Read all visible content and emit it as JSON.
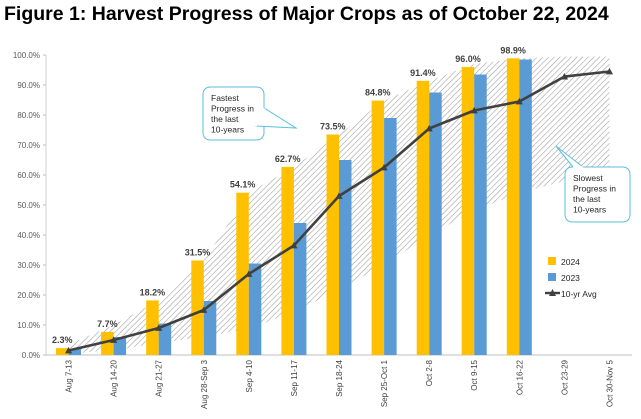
{
  "title": "Figure 1: Harvest Progress of Major Crops as of October 22, 2024",
  "chart_data": {
    "type": "bar",
    "title": "Figure 1: Harvest Progress of Major Crops as of October 22, 2024",
    "xlabel": "",
    "ylabel": "",
    "ylim": [
      0,
      100
    ],
    "ytick_step": 10,
    "ytick_format": "percent_1dp",
    "grid": false,
    "legend_position": "right",
    "categories": [
      "Aug 7-13",
      "Aug 14-20",
      "Aug 21-27",
      "Aug 28-Sep 3",
      "Sep 4-10",
      "Sep 11-17",
      "Sep 18-24",
      "Sep 25-Oct 1",
      "Oct 2-8",
      "Oct 9-15",
      "Oct 16-22",
      "Oct 23-29",
      "Oct 30-Nov 5"
    ],
    "series": [
      {
        "name": "2024",
        "kind": "bar",
        "color": "#FFC000",
        "values": [
          2.3,
          7.7,
          18.2,
          31.5,
          54.1,
          62.7,
          73.5,
          84.8,
          91.4,
          96.0,
          98.9,
          null,
          null
        ],
        "data_labels": [
          "2.3%",
          "7.7%",
          "18.2%",
          "31.5%",
          "54.1%",
          "62.7%",
          "73.5%",
          "84.8%",
          "91.4%",
          "96.0%",
          "98.9%",
          "",
          ""
        ]
      },
      {
        "name": "2023",
        "kind": "bar",
        "color": "#5B9BD5",
        "values": [
          2.0,
          6.0,
          10.5,
          18.0,
          30.5,
          44.0,
          65.0,
          79.0,
          87.5,
          93.5,
          98.5,
          null,
          null
        ]
      },
      {
        "name": "10-yr Avg",
        "kind": "line",
        "color": "#404040",
        "values": [
          1.5,
          5.0,
          9.0,
          15.0,
          27.0,
          36.5,
          53.0,
          62.5,
          75.5,
          81.5,
          84.5,
          92.8,
          94.5
        ]
      }
    ],
    "range_band": {
      "upper": [
        3.5,
        10.0,
        18.2,
        31.5,
        54.1,
        62.7,
        73.5,
        84.8,
        91.4,
        97.0,
        98.9,
        99.5,
        99.5
      ],
      "lower": [
        0.5,
        1.5,
        4.0,
        6.0,
        9.0,
        14.0,
        22.0,
        30.0,
        40.0,
        48.0,
        54.0,
        58.0,
        61.0
      ]
    },
    "annotations": [
      {
        "id": "fastest",
        "text": "Fastest Progress in the last 10-years"
      },
      {
        "id": "slowest",
        "text": "Slowest Progress in the last 10-years"
      }
    ]
  }
}
